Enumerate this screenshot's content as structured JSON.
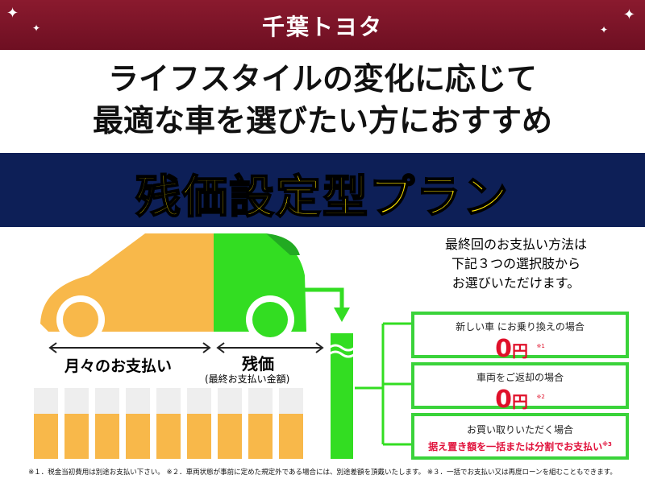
{
  "brand": "千葉トヨタ",
  "headline": {
    "line1": "ライフスタイルの変化に応じて",
    "line2": "最適な車を選びたい方におすすめ"
  },
  "plan_title": "残価設定型プラン",
  "intro": {
    "line1": "最終回のお支払い方法は",
    "line2": "下記３つの選択肢から",
    "line3": "お選びいただけます。"
  },
  "labels": {
    "monthly": "月々のお支払い",
    "residual": "残価",
    "residual_sub": "(最終お支払い金額)"
  },
  "options": [
    {
      "title": "新しい車 にお乗り換えの場合",
      "amount": "0",
      "unit": "円",
      "note": "※1"
    },
    {
      "title": "車両をご返却の場合",
      "amount": "0",
      "unit": "円",
      "note": "※2"
    },
    {
      "title": "お買い取りいただく場合",
      "detail": "据え置き額を一括または分割でお支払い",
      "note": "※3"
    }
  ],
  "footnote": "※１．税金当初費用は別途お支払い下さい。 ※２．車両状態が事前に定めた規定外である場合には、別途差額を頂戴いたします。 ※３．一括でお支払い又は再度ローンを組むこともできます。",
  "colors": {
    "maroon": "#7a1428",
    "navy": "#0d1f57",
    "yellow": "#ffe600",
    "orange": "#f8b84a",
    "green": "#33dd22",
    "red": "#e0102a"
  }
}
